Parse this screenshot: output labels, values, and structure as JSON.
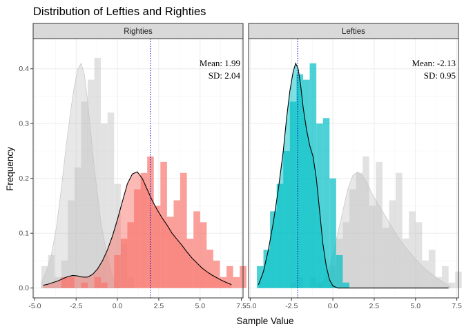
{
  "chart_data": {
    "type": "histogram",
    "title": "Distribution of Lefties and Righties",
    "xlabel": "Sample Value",
    "ylabel": "Frequency",
    "xlim": [
      -5.1,
      7.6
    ],
    "ylim": [
      -0.018,
      0.455
    ],
    "x_ticks": [
      -5,
      -2.5,
      0,
      2.5,
      5,
      7.5
    ],
    "x_tick_labels": [
      "-5.0",
      "-2.5",
      "0.0",
      "2.5",
      "5.0",
      "7.5"
    ],
    "y_ticks": [
      0,
      0.1,
      0.2,
      0.3,
      0.4
    ],
    "y_tick_labels": [
      "0.0",
      "0.1",
      "0.2",
      "0.3",
      "0.4"
    ],
    "grid": true,
    "bin_edges_start": -4.6,
    "bin_width": 0.4,
    "colors": {
      "righties": "#F8766D",
      "lefties": "#00BFC4",
      "background_hist": "#BEBEBE",
      "mean_line": "#0000CD",
      "strip_fill": "#D9D9D9",
      "panel_border": "#333333"
    },
    "panels": [
      {
        "strip": "Righties",
        "mean": 1.99,
        "mean_label": "Mean: 1.99",
        "sd_label": "SD: 2.04",
        "fill": "#F8766D",
        "hist": [
          0,
          0,
          0,
          0.02,
          0.02,
          0,
          0.01,
          0,
          0.02,
          0.01,
          0,
          0.06,
          0.09,
          0.12,
          0.18,
          0.21,
          0.24,
          0.15,
          0.23,
          0.13,
          0.16,
          0.21,
          0.09,
          0.14,
          0.12,
          0.07,
          0.05,
          0.02,
          0.04,
          0.02,
          0.04
        ],
        "density": {
          "x": [
            -4.5,
            -4.2,
            -3.9,
            -3.6,
            -3.3,
            -3.0,
            -2.7,
            -2.4,
            -2.1,
            -1.8,
            -1.5,
            -1.2,
            -0.9,
            -0.6,
            -0.3,
            0.0,
            0.3,
            0.6,
            0.9,
            1.2,
            1.5,
            1.8,
            2.1,
            2.4,
            2.7,
            3.0,
            3.3,
            3.6,
            3.9,
            4.2,
            4.5,
            4.8,
            5.1,
            5.4,
            5.7,
            6.0,
            6.3,
            6.6,
            6.9
          ],
          "y": [
            0.005,
            0.007,
            0.01,
            0.013,
            0.017,
            0.021,
            0.023,
            0.022,
            0.02,
            0.02,
            0.025,
            0.035,
            0.05,
            0.07,
            0.095,
            0.125,
            0.158,
            0.19,
            0.208,
            0.212,
            0.2,
            0.18,
            0.16,
            0.143,
            0.128,
            0.115,
            0.1,
            0.089,
            0.078,
            0.066,
            0.055,
            0.046,
            0.037,
            0.03,
            0.024,
            0.019,
            0.014,
            0.01,
            0.006
          ]
        },
        "background_hist": [
          0.04,
          0.06,
          0.02,
          0.05,
          0.16,
          0.22,
          0.34,
          0.38,
          0.42,
          0.3,
          0.32,
          0.19,
          0.08,
          0.02,
          0,
          0,
          0,
          0,
          0,
          0,
          0,
          0,
          0,
          0,
          0,
          0,
          0,
          0,
          0,
          0,
          0
        ],
        "background_density": {
          "x": [
            -4.6,
            -4.3,
            -4.0,
            -3.7,
            -3.4,
            -3.1,
            -2.8,
            -2.6,
            -2.4,
            -2.2,
            -2.0,
            -1.8,
            -1.6,
            -1.4,
            -1.2,
            -1.0,
            -0.7,
            -0.4,
            -0.1,
            0.2
          ],
          "y": [
            0.01,
            0.03,
            0.06,
            0.11,
            0.18,
            0.26,
            0.33,
            0.37,
            0.4,
            0.41,
            0.39,
            0.34,
            0.28,
            0.22,
            0.17,
            0.12,
            0.07,
            0.03,
            0.01,
            0.0
          ]
        }
      },
      {
        "strip": "Lefties",
        "mean": -2.13,
        "mean_label": "Mean: -2.13",
        "sd_label": "SD: 0.95",
        "fill": "#00BFC4",
        "hist": [
          0.04,
          0.07,
          0.14,
          0.19,
          0.25,
          0.34,
          0.39,
          0.38,
          0.41,
          0.3,
          0.31,
          0.2,
          0.06,
          0.01,
          0,
          0,
          0,
          0,
          0,
          0,
          0,
          0,
          0,
          0,
          0,
          0,
          0,
          0,
          0,
          0,
          0
        ],
        "density": {
          "x": [
            -4.5,
            -4.2,
            -3.9,
            -3.6,
            -3.3,
            -3.0,
            -2.8,
            -2.6,
            -2.4,
            -2.25,
            -2.1,
            -1.95,
            -1.8,
            -1.6,
            -1.4,
            -1.2,
            -1.0,
            -0.8,
            -0.6,
            -0.4,
            -0.2,
            0.0,
            0.3,
            0.6,
            1.0,
            2.0,
            3.0,
            4.0,
            5.0,
            6.0,
            7.0
          ],
          "y": [
            0.006,
            0.03,
            0.07,
            0.12,
            0.18,
            0.25,
            0.31,
            0.36,
            0.395,
            0.41,
            0.4,
            0.37,
            0.33,
            0.29,
            0.26,
            0.24,
            0.2,
            0.14,
            0.08,
            0.04,
            0.015,
            0.004,
            0.0,
            0.0,
            0.0,
            0.0,
            0.0,
            0.0,
            0.0,
            0.0,
            0.0
          ]
        },
        "background_hist": [
          0,
          0,
          0,
          0,
          0,
          0.01,
          0.02,
          0,
          0.02,
          0.01,
          0,
          0.04,
          0.09,
          0.12,
          0.18,
          0.21,
          0.24,
          0.15,
          0.23,
          0.11,
          0.16,
          0.21,
          0.09,
          0.14,
          0.12,
          0.05,
          0.07,
          0.02,
          0.04,
          0.01,
          0.03
        ],
        "background_density": {
          "x": [
            -0.8,
            -0.4,
            0.0,
            0.3,
            0.6,
            0.9,
            1.2,
            1.5,
            1.8,
            2.1,
            2.4,
            2.7,
            3.0,
            3.3,
            3.6,
            3.9,
            4.2,
            4.5,
            4.8,
            5.1,
            5.4,
            5.7,
            6.0,
            6.3,
            6.6,
            6.9,
            7.1
          ],
          "y": [
            0.0,
            0.02,
            0.06,
            0.1,
            0.14,
            0.18,
            0.205,
            0.212,
            0.205,
            0.19,
            0.17,
            0.155,
            0.14,
            0.125,
            0.11,
            0.095,
            0.082,
            0.07,
            0.06,
            0.05,
            0.04,
            0.032,
            0.025,
            0.018,
            0.012,
            0.007,
            0.004
          ]
        }
      }
    ]
  }
}
